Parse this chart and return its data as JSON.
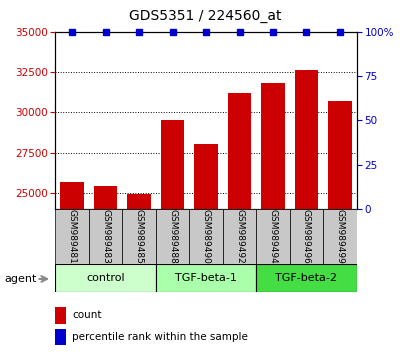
{
  "title": "GDS5351 / 224560_at",
  "samples": [
    "GSM989481",
    "GSM989483",
    "GSM989485",
    "GSM989488",
    "GSM989490",
    "GSM989492",
    "GSM989494",
    "GSM989496",
    "GSM989499"
  ],
  "counts": [
    25700,
    25400,
    24950,
    29500,
    28000,
    31200,
    31800,
    32600,
    30700
  ],
  "percentiles": [
    100,
    100,
    100,
    100,
    100,
    100,
    100,
    100,
    100
  ],
  "groups": [
    {
      "label": "control",
      "indices": [
        0,
        1,
        2
      ],
      "color": "#ccffcc"
    },
    {
      "label": "TGF-beta-1",
      "indices": [
        3,
        4,
        5
      ],
      "color": "#aaffaa"
    },
    {
      "label": "TGF-beta-2",
      "indices": [
        6,
        7,
        8
      ],
      "color": "#44dd44"
    }
  ],
  "bar_color": "#cc0000",
  "percentile_color": "#0000cc",
  "ylim_left": [
    24000,
    35000
  ],
  "ylim_right": [
    0,
    100
  ],
  "yticks_left": [
    25000,
    27500,
    30000,
    32500,
    35000
  ],
  "yticks_right": [
    0,
    25,
    50,
    75,
    100
  ],
  "grid_color": "#000000",
  "background_color": "#ffffff",
  "tick_label_color_left": "#cc0000",
  "tick_label_color_right": "#0000cc",
  "sample_box_color": "#c8c8c8",
  "agent_label": "agent",
  "legend_count_label": "count",
  "legend_percentile_label": "percentile rank within the sample"
}
